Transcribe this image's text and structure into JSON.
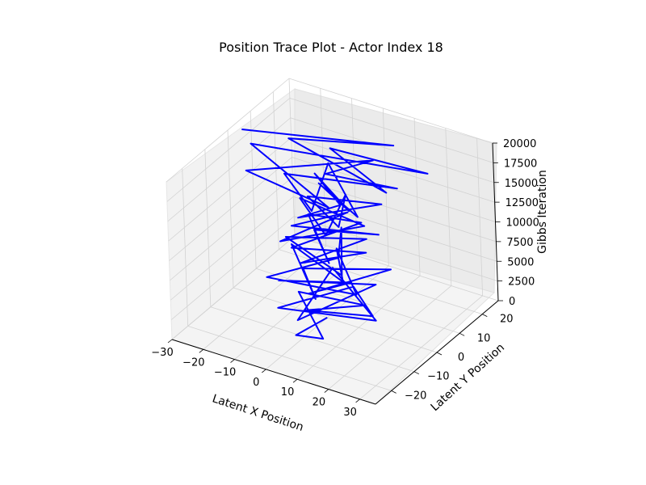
{
  "chart_data": {
    "type": "line",
    "projection": "3d",
    "title": "Position Trace Plot - Actor Index 18",
    "xlabel": "Latent X Position",
    "ylabel": "Latent Y Position",
    "zlabel": "Gibbs Iteration",
    "xlim": [
      -30,
      35
    ],
    "ylim": [
      -27,
      27
    ],
    "zlim": [
      0,
      20000
    ],
    "x_ticks": [
      -30,
      -20,
      -10,
      0,
      10,
      20,
      30
    ],
    "y_ticks": [
      -20,
      -10,
      0,
      10,
      20
    ],
    "z_ticks": [
      0,
      2500,
      5000,
      7500,
      10000,
      12500,
      15000,
      17500,
      20000
    ],
    "grid": true,
    "line_color": "#0000ff",
    "series": [
      {
        "values_note_omitted": null,
        "points": [
          [
            0,
            0,
            0
          ],
          [
            -2,
            -11,
            200
          ],
          [
            6,
            -10,
            500
          ],
          [
            -12,
            4,
            800
          ],
          [
            8,
            6,
            1100
          ],
          [
            -4,
            -4,
            1400
          ],
          [
            14,
            1,
            1700
          ],
          [
            2,
            9,
            2000
          ],
          [
            -9,
            -9,
            2300
          ],
          [
            18,
            -3,
            2600
          ],
          [
            -6,
            11,
            2900
          ],
          [
            1,
            -14,
            3200
          ],
          [
            10,
            8,
            3500
          ],
          [
            -13,
            -3,
            3800
          ],
          [
            5,
            4,
            4100
          ],
          [
            -1,
            -6,
            4400
          ],
          [
            12,
            12,
            4700
          ],
          [
            -8,
            1,
            5000
          ],
          [
            4,
            -10,
            5300
          ],
          [
            -16,
            7,
            5600
          ],
          [
            7,
            -2,
            5900
          ],
          [
            -3,
            9,
            6200
          ],
          [
            15,
            -7,
            6500
          ],
          [
            -10,
            -12,
            6800
          ],
          [
            2,
            3,
            7100
          ],
          [
            -5,
            14,
            7400
          ],
          [
            9,
            -5,
            7700
          ],
          [
            -14,
            2,
            8000
          ],
          [
            6,
            10,
            8300
          ],
          [
            -2,
            -8,
            8600
          ],
          [
            11,
            3,
            8900
          ],
          [
            -7,
            -5,
            9200
          ],
          [
            3,
            12,
            9500
          ],
          [
            -11,
            8,
            9800
          ],
          [
            8,
            -9,
            10100
          ],
          [
            -4,
            1,
            10400
          ],
          [
            13,
            6,
            10700
          ],
          [
            -9,
            -2,
            11000
          ],
          [
            1,
            9,
            11300
          ],
          [
            -6,
            -11,
            11600
          ],
          [
            10,
            4,
            11900
          ],
          [
            -12,
            6,
            12200
          ],
          [
            5,
            -6,
            12500
          ],
          [
            -1,
            11,
            12800
          ],
          [
            7,
            -3,
            13100
          ],
          [
            -8,
            4,
            13400
          ],
          [
            12,
            9,
            13700
          ],
          [
            -3,
            -7,
            14000
          ],
          [
            4,
            2,
            14300
          ],
          [
            -10,
            10,
            14600
          ],
          [
            9,
            -1,
            14900
          ],
          [
            -5,
            5,
            15200
          ],
          [
            14,
            -4,
            15500
          ],
          [
            -7,
            12,
            15800
          ],
          [
            3,
            -9,
            16100
          ],
          [
            -13,
            1,
            16400
          ],
          [
            18,
            8,
            16700
          ],
          [
            -2,
            4,
            17000
          ],
          [
            6,
            14,
            17300
          ],
          [
            -20,
            -6,
            17600
          ],
          [
            10,
            -11,
            17900
          ],
          [
            -25,
            3,
            18200
          ],
          [
            25,
            12,
            18500
          ],
          [
            -4,
            9,
            18800
          ],
          [
            22,
            -2,
            19100
          ],
          [
            -15,
            6,
            19400
          ],
          [
            12,
            15,
            19700
          ],
          [
            -27,
            2,
            20000
          ]
        ]
      }
    ]
  }
}
